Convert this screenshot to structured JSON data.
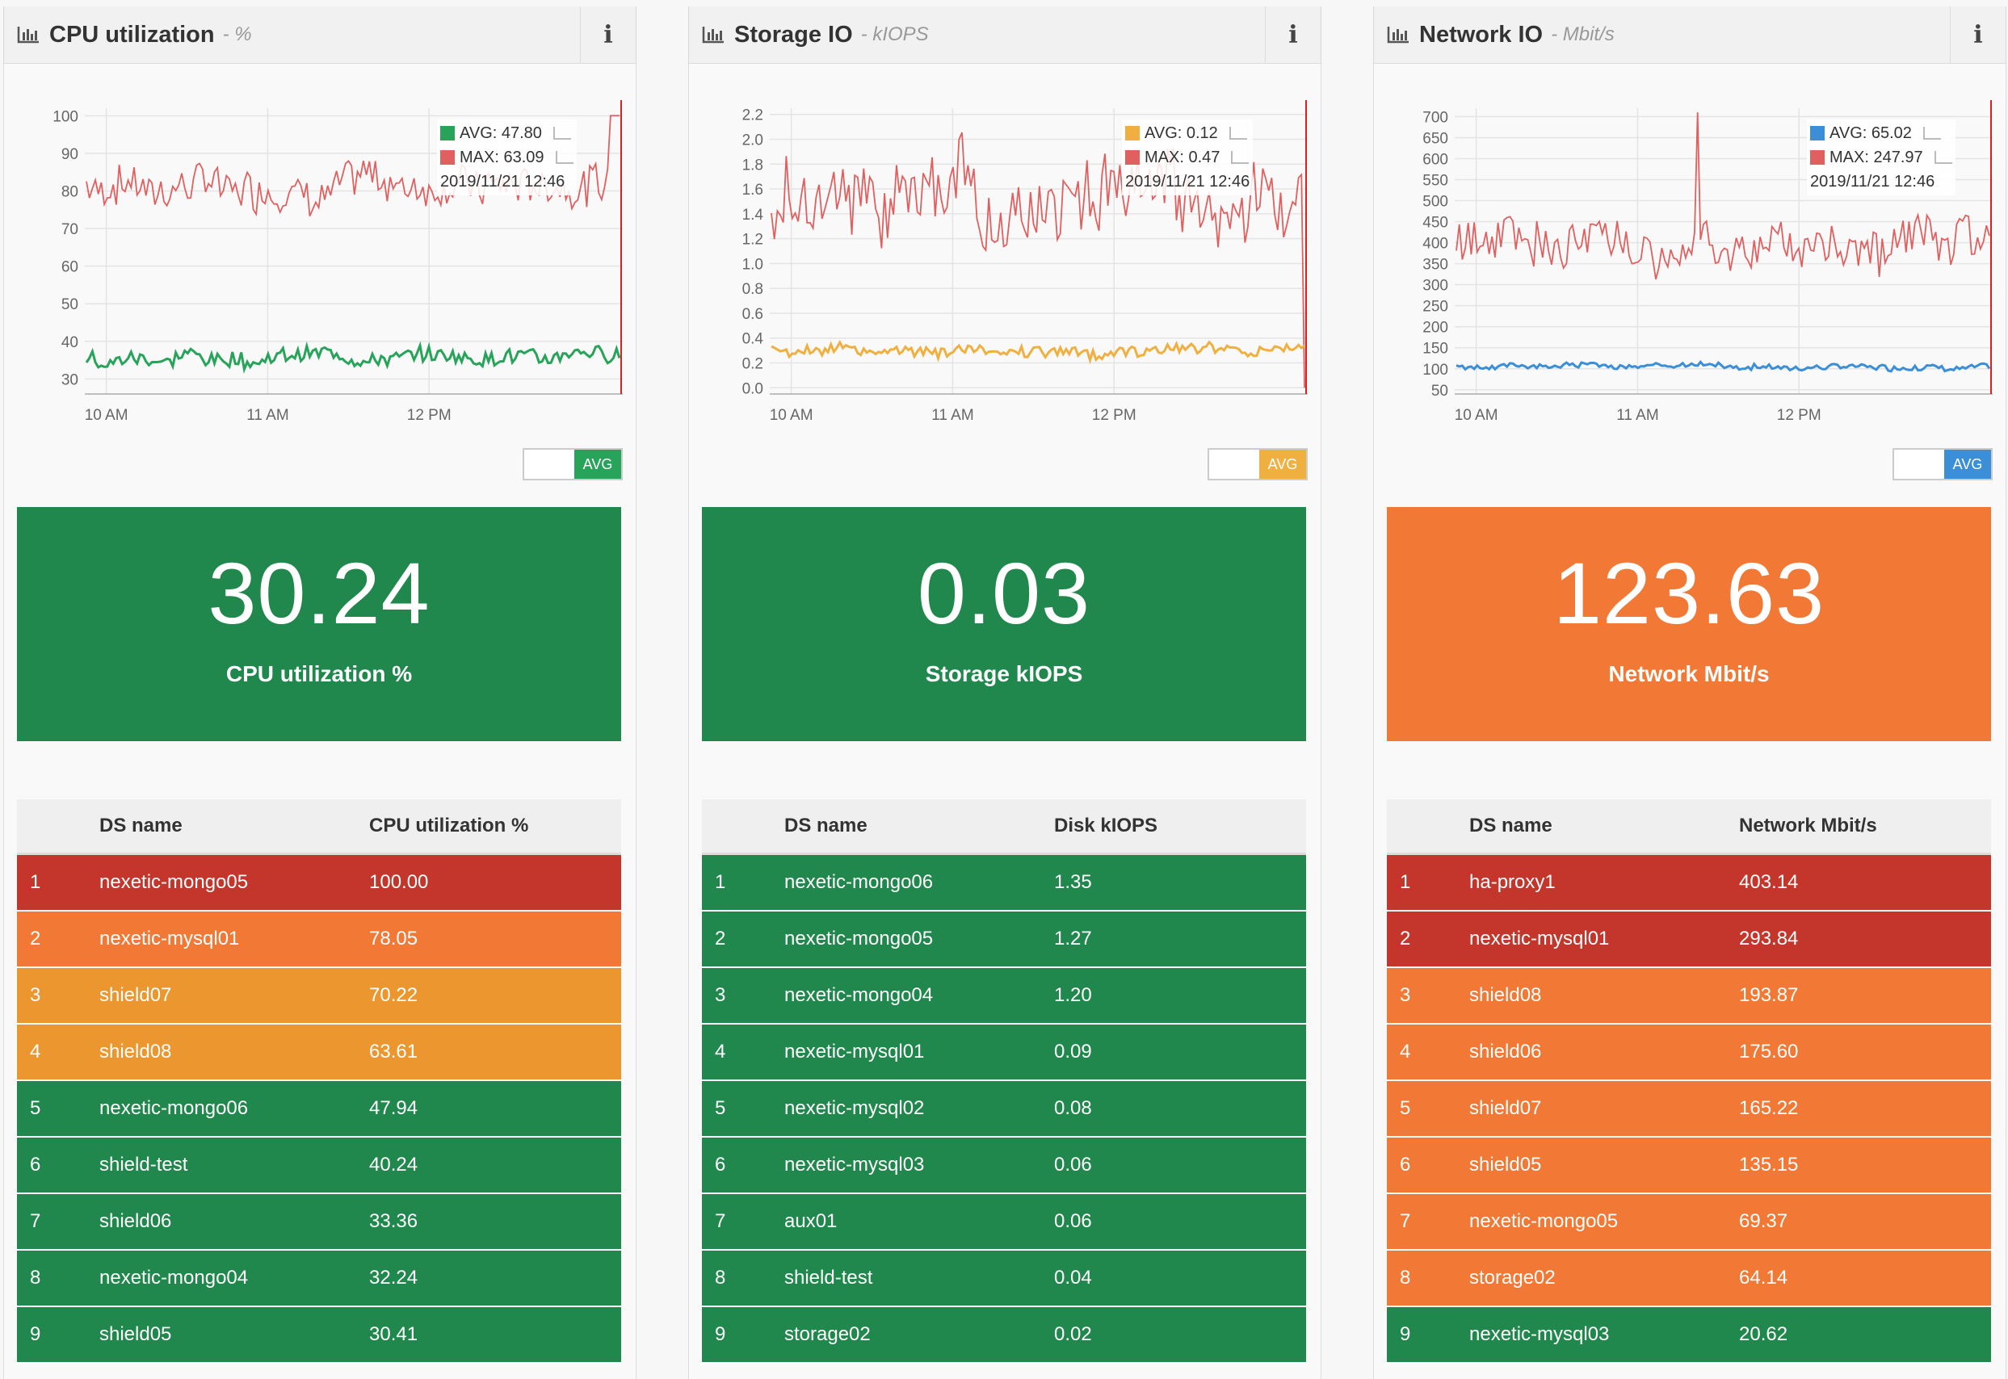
{
  "panels": [
    {
      "title": "CPU utilization",
      "unit": "- %",
      "legend": [
        {
          "label": "AVG: 47.80",
          "color": "#27a35a"
        },
        {
          "label": "MAX: 63.09",
          "color": "#e06060"
        }
      ],
      "timestamp": "2019/11/21 12:46",
      "toggle_label": "AVG",
      "accent": "#27a35a",
      "big_value": "30.24",
      "big_label": "CPU utilization %",
      "big_color": "green",
      "columns": [
        "DS name",
        "CPU utilization %"
      ],
      "rows": [
        {
          "idx": "1",
          "name": "nexetic-mongo05",
          "value": "100.00",
          "color": "red"
        },
        {
          "idx": "2",
          "name": "nexetic-mysql01",
          "value": "78.05",
          "color": "orange"
        },
        {
          "idx": "3",
          "name": "shield07",
          "value": "70.22",
          "color": "amber"
        },
        {
          "idx": "4",
          "name": "shield08",
          "value": "63.61",
          "color": "amber"
        },
        {
          "idx": "5",
          "name": "nexetic-mongo06",
          "value": "47.94",
          "color": "green"
        },
        {
          "idx": "6",
          "name": "shield-test",
          "value": "40.24",
          "color": "green"
        },
        {
          "idx": "7",
          "name": "shield06",
          "value": "33.36",
          "color": "green"
        },
        {
          "idx": "8",
          "name": "nexetic-mongo04",
          "value": "32.24",
          "color": "green"
        },
        {
          "idx": "9",
          "name": "shield05",
          "value": "30.41",
          "color": "green"
        }
      ],
      "chart_data": {
        "type": "line",
        "x_ticks": [
          "10 AM",
          "11 AM",
          "12 PM"
        ],
        "y_ticks": [
          "100",
          "90",
          "80",
          "70",
          "60",
          "50",
          "40",
          "30"
        ],
        "ylim": [
          26,
          102
        ],
        "series": [
          {
            "name": "MAX",
            "color": "#e06060",
            "base": 82,
            "amp": 6,
            "end_spike": 100
          },
          {
            "name": "AVG",
            "color": "#27a35a",
            "base": 36,
            "amp": 2.5
          }
        ]
      }
    },
    {
      "title": "Storage IO",
      "unit": "- kIOPS",
      "legend": [
        {
          "label": "AVG: 0.12",
          "color": "#f0b040"
        },
        {
          "label": "MAX: 0.47",
          "color": "#e06060"
        }
      ],
      "timestamp": "2019/11/21 12:46",
      "toggle_label": "AVG",
      "accent": "#f0b040",
      "big_value": "0.03",
      "big_label": "Storage kIOPS",
      "big_color": "green",
      "columns": [
        "DS name",
        "Disk kIOPS"
      ],
      "rows": [
        {
          "idx": "1",
          "name": "nexetic-mongo06",
          "value": "1.35",
          "color": "green"
        },
        {
          "idx": "2",
          "name": "nexetic-mongo05",
          "value": "1.27",
          "color": "green"
        },
        {
          "idx": "3",
          "name": "nexetic-mongo04",
          "value": "1.20",
          "color": "green"
        },
        {
          "idx": "4",
          "name": "nexetic-mysql01",
          "value": "0.09",
          "color": "green"
        },
        {
          "idx": "5",
          "name": "nexetic-mysql02",
          "value": "0.08",
          "color": "green"
        },
        {
          "idx": "6",
          "name": "nexetic-mysql03",
          "value": "0.06",
          "color": "green"
        },
        {
          "idx": "7",
          "name": "aux01",
          "value": "0.06",
          "color": "green"
        },
        {
          "idx": "8",
          "name": "shield-test",
          "value": "0.04",
          "color": "green"
        },
        {
          "idx": "9",
          "name": "storage02",
          "value": "0.02",
          "color": "green"
        }
      ],
      "chart_data": {
        "type": "line",
        "x_ticks": [
          "10 AM",
          "11 AM",
          "12 PM"
        ],
        "y_ticks": [
          "2.2",
          "2.0",
          "1.8",
          "1.6",
          "1.4",
          "1.2",
          "1.0",
          "0.8",
          "0.6",
          "0.4",
          "0.2",
          "0.0"
        ],
        "ylim": [
          -0.05,
          2.25
        ],
        "series": [
          {
            "name": "MAX",
            "color": "#e06060",
            "base": 1.55,
            "amp": 0.35,
            "end_drop": 0.0
          },
          {
            "name": "AVG",
            "color": "#f0b040",
            "base": 0.3,
            "amp": 0.05
          }
        ]
      }
    },
    {
      "title": "Network IO",
      "unit": "- Mbit/s",
      "legend": [
        {
          "label": "AVG: 65.02",
          "color": "#3a8fd8"
        },
        {
          "label": "MAX: 247.97",
          "color": "#e06060"
        }
      ],
      "timestamp": "2019/11/21 12:46",
      "toggle_label": "AVG",
      "accent": "#3a8fd8",
      "big_value": "123.63",
      "big_label": "Network Mbit/s",
      "big_color": "orange",
      "columns": [
        "DS name",
        "Network Mbit/s"
      ],
      "rows": [
        {
          "idx": "1",
          "name": "ha-proxy1",
          "value": "403.14",
          "color": "red"
        },
        {
          "idx": "2",
          "name": "nexetic-mysql01",
          "value": "293.84",
          "color": "red"
        },
        {
          "idx": "3",
          "name": "shield08",
          "value": "193.87",
          "color": "orange"
        },
        {
          "idx": "4",
          "name": "shield06",
          "value": "175.60",
          "color": "orange"
        },
        {
          "idx": "5",
          "name": "shield07",
          "value": "165.22",
          "color": "orange"
        },
        {
          "idx": "6",
          "name": "shield05",
          "value": "135.15",
          "color": "orange"
        },
        {
          "idx": "7",
          "name": "nexetic-mongo05",
          "value": "69.37",
          "color": "orange"
        },
        {
          "idx": "8",
          "name": "storage02",
          "value": "64.14",
          "color": "orange"
        },
        {
          "idx": "9",
          "name": "nexetic-mysql03",
          "value": "20.62",
          "color": "green"
        }
      ],
      "chart_data": {
        "type": "line",
        "x_ticks": [
          "10 AM",
          "11 AM",
          "12 PM"
        ],
        "y_ticks": [
          "700",
          "650",
          "600",
          "550",
          "500",
          "450",
          "400",
          "350",
          "300",
          "250",
          "200",
          "150",
          "100",
          "50"
        ],
        "ylim": [
          40,
          720
        ],
        "series": [
          {
            "name": "MAX",
            "color": "#e06060",
            "base": 400,
            "amp": 60,
            "peak": 710
          },
          {
            "name": "AVG",
            "color": "#3a8fd8",
            "base": 105,
            "amp": 8
          }
        ]
      }
    }
  ]
}
